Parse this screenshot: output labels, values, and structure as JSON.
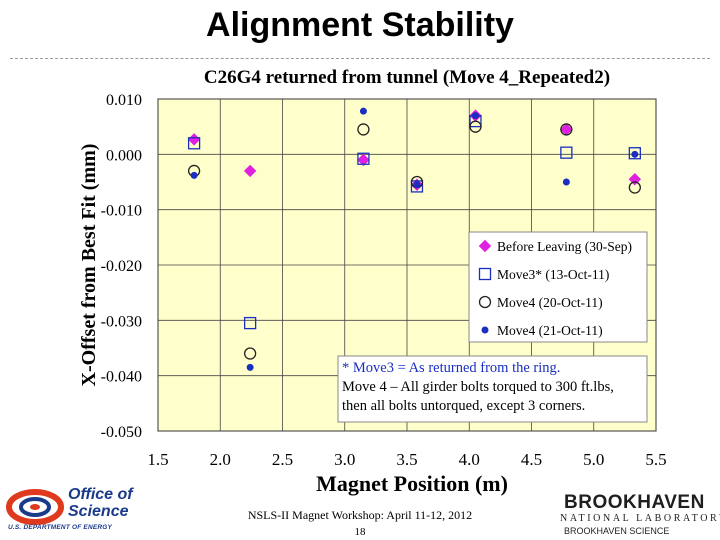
{
  "slide": {
    "title": "Alignment Stability",
    "footer_event": "NSLS-II Magnet Workshop: April 11-12, 2012",
    "footer_page": "18"
  },
  "logos": {
    "doe_org": "Office of Science",
    "doe_dept": "U.S. DEPARTMENT OF ENERGY",
    "bnl_name": "BROOKHAVEN",
    "bnl_lab": "NATIONAL LABORATORY",
    "bnl_assoc": "BROOKHAVEN SCIENCE"
  },
  "colors": {
    "plot_bg": "#ffffcc",
    "magenta": "#e020e0",
    "blue": "#1a2fc0",
    "note": "#1a2fc0"
  },
  "chart_data": {
    "type": "scatter",
    "title": "C26G4 returned from tunnel (Move 4_Repeated2)",
    "xlabel": "Magnet Position (m)",
    "ylabel": "X-Offset from Best Fit (mm)",
    "xlim": [
      1.5,
      5.5
    ],
    "ylim": [
      -0.05,
      0.01
    ],
    "x_ticks": [
      1.5,
      2.0,
      2.5,
      3.0,
      3.5,
      4.0,
      4.5,
      5.0,
      5.5
    ],
    "x_tick_labels": [
      "1.5",
      "2.0",
      "2.5",
      "3.0",
      "3.5",
      "4.0",
      "4.5",
      "5.0",
      "5.5"
    ],
    "y_ticks": [
      0.01,
      0.0,
      -0.01,
      -0.02,
      -0.03,
      -0.04,
      -0.05
    ],
    "y_tick_labels": [
      "0.010",
      "0.000",
      "-0.010",
      "-0.020",
      "-0.030",
      "-0.040",
      "-0.050"
    ],
    "grid": true,
    "legend_position": "right",
    "series": [
      {
        "name": "Before Leaving (30-Sep)",
        "marker": "diamond",
        "x": [
          1.79,
          2.24,
          3.15,
          3.58,
          4.05,
          4.78,
          5.33
        ],
        "y": [
          0.0027,
          -0.003,
          -0.001,
          -0.0055,
          0.007,
          0.0045,
          -0.0045
        ]
      },
      {
        "name": "Move3* (13-Oct-11)",
        "marker": "square",
        "x": [
          1.79,
          2.24,
          3.15,
          3.58,
          4.05,
          4.78,
          5.33
        ],
        "y": [
          0.002,
          -0.0305,
          -0.0008,
          -0.0058,
          0.006,
          0.0003,
          0.0002
        ]
      },
      {
        "name": "Move4 (20-Oct-11)",
        "marker": "circle",
        "x": [
          1.79,
          2.24,
          3.15,
          3.58,
          4.05,
          4.78,
          5.33
        ],
        "y": [
          -0.003,
          -0.036,
          0.0045,
          -0.005,
          0.005,
          0.0045,
          -0.006
        ]
      },
      {
        "name": "Move4 (21-Oct-11)",
        "marker": "dot",
        "x": [
          1.79,
          2.24,
          3.15,
          3.58,
          4.05,
          4.78,
          5.33
        ],
        "y": [
          -0.0038,
          -0.0385,
          0.0078,
          -0.0055,
          0.007,
          -0.005,
          0.0
        ]
      }
    ],
    "annotation": [
      "* Move3 = As returned from the ring.",
      "Move 4 – All girder bolts torqued to 300 ft.lbs,",
      "then all bolts untorqued, except 3 corners."
    ]
  }
}
